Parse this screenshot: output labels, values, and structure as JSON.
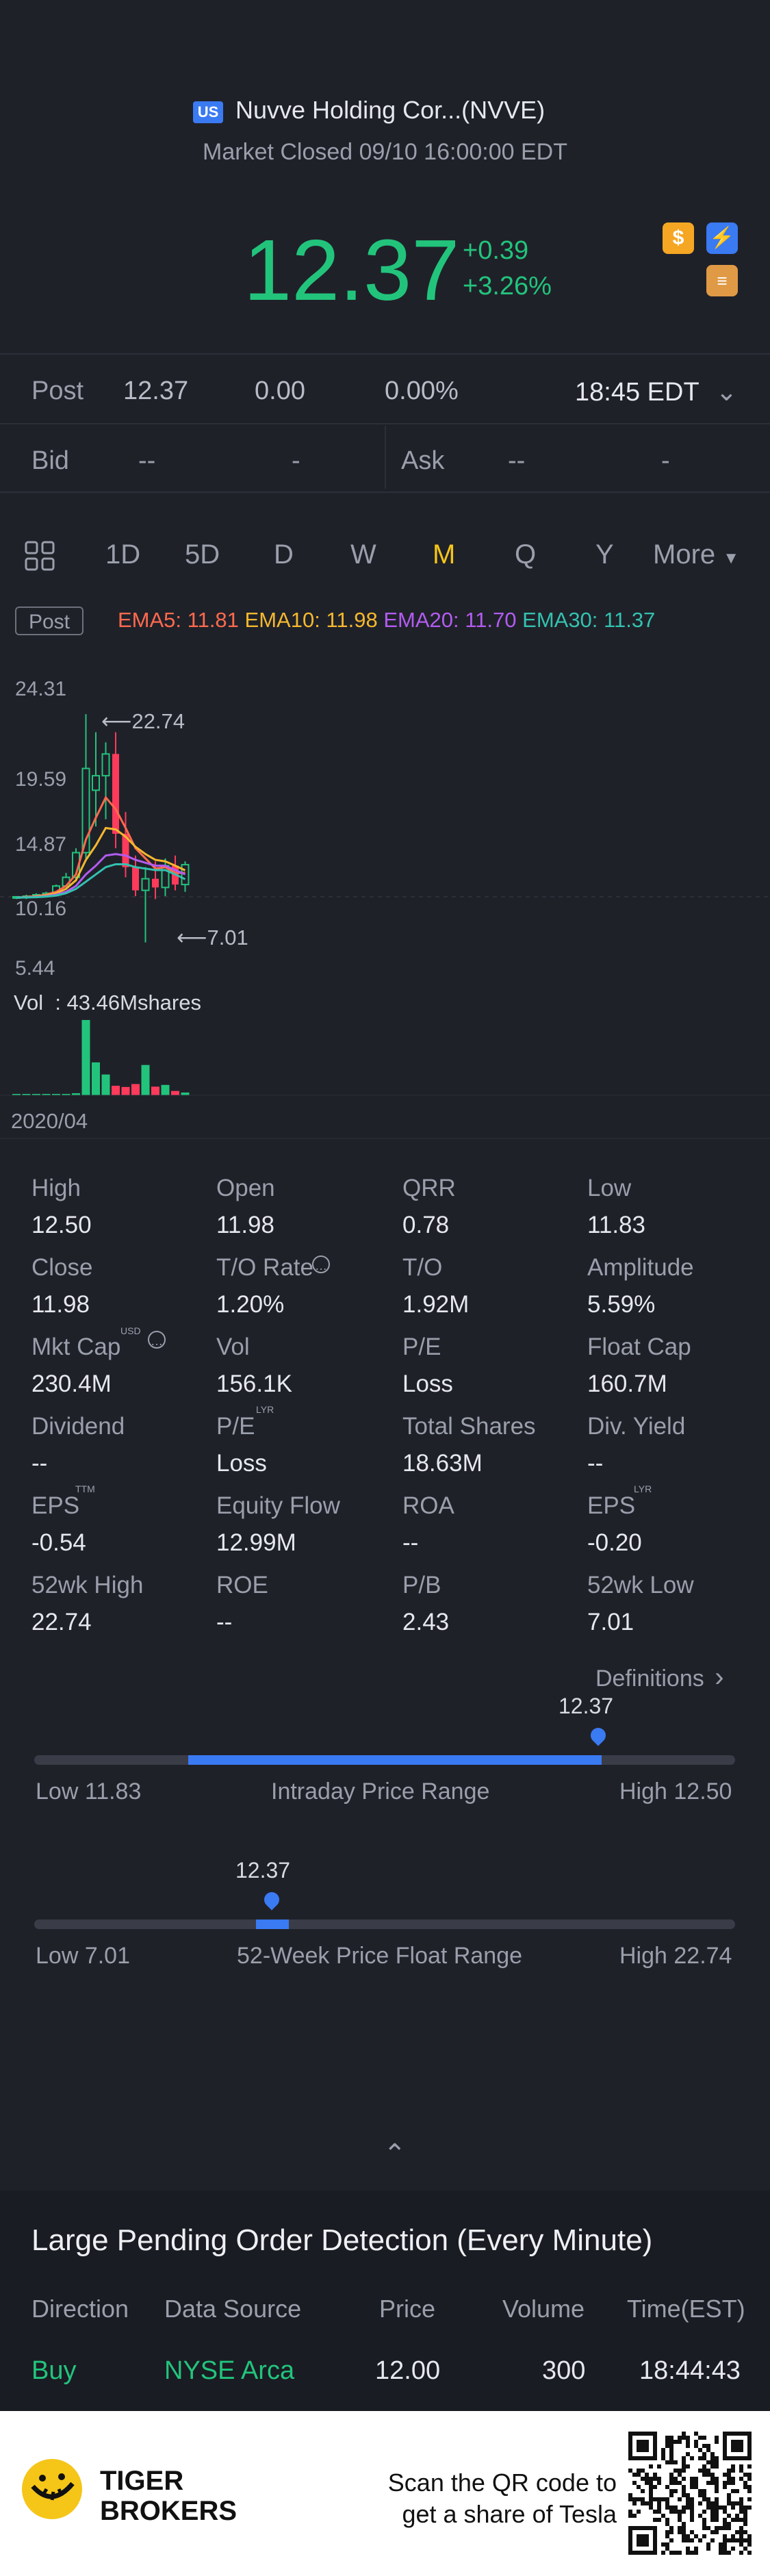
{
  "header": {
    "market_badge": "US",
    "name": "Nuvve Holding Cor...(NVVE)",
    "status": "Market Closed 09/10 16:00:00 EDT"
  },
  "quote": {
    "price": "12.37",
    "change": "+0.39",
    "change_pct": "+3.26%"
  },
  "post": {
    "label": "Post",
    "price": "12.37",
    "change": "0.00",
    "change_pct": "0.00%",
    "time": "18:45 EDT"
  },
  "bidask": {
    "bid_label": "Bid",
    "bid_price": "--",
    "bid_size": "-",
    "ask_label": "Ask",
    "ask_price": "--",
    "ask_size": "-"
  },
  "tabs": {
    "items": [
      "1D",
      "5D",
      "D",
      "W",
      "M",
      "Q",
      "Y"
    ],
    "active": "M",
    "more_label": "More"
  },
  "indicators": {
    "post_badge": "Post",
    "ema5": "EMA5: 11.81",
    "ema10": "EMA10: 11.98",
    "ema20": "EMA20: 11.70",
    "ema30": "EMA30: 11.37",
    "colors": {
      "ema5": "#ff6a4d",
      "ema10": "#f5b82e",
      "ema20": "#b25cf0",
      "ema30": "#33c2b0"
    }
  },
  "chart_data": {
    "type": "candlestick",
    "y_ticks": [
      "24.31",
      "19.59",
      "14.87",
      "10.16",
      "5.44"
    ],
    "ylim": [
      5.44,
      24.31
    ],
    "high_annotation": "22.74",
    "low_annotation": "7.01",
    "volume_label": "Vol  : 43.46Mshares",
    "x_start_label": "2020/04",
    "candles": [
      {
        "o": 10.1,
        "h": 10.2,
        "l": 10.0,
        "c": 10.16
      },
      {
        "o": 10.16,
        "h": 10.3,
        "l": 10.0,
        "c": 10.2
      },
      {
        "o": 10.2,
        "h": 10.4,
        "l": 10.1,
        "c": 10.3
      },
      {
        "o": 10.3,
        "h": 10.5,
        "l": 10.2,
        "c": 10.4
      },
      {
        "o": 10.4,
        "h": 11.0,
        "l": 10.3,
        "c": 10.9
      },
      {
        "o": 10.9,
        "h": 11.8,
        "l": 10.8,
        "c": 11.5
      },
      {
        "o": 11.5,
        "h": 13.5,
        "l": 11.2,
        "c": 13.2
      },
      {
        "o": 13.2,
        "h": 22.74,
        "l": 12.8,
        "c": 19.0
      },
      {
        "o": 17.5,
        "h": 21.5,
        "l": 15.0,
        "c": 18.5
      },
      {
        "o": 18.5,
        "h": 20.8,
        "l": 15.5,
        "c": 20.0
      },
      {
        "o": 20.0,
        "h": 21.5,
        "l": 13.5,
        "c": 14.5
      },
      {
        "o": 14.5,
        "h": 16.0,
        "l": 11.5,
        "c": 12.2
      },
      {
        "o": 12.2,
        "h": 13.0,
        "l": 10.2,
        "c": 10.6
      },
      {
        "o": 10.6,
        "h": 12.2,
        "l": 7.01,
        "c": 11.4
      },
      {
        "o": 11.4,
        "h": 12.6,
        "l": 10.0,
        "c": 10.8
      },
      {
        "o": 10.8,
        "h": 12.8,
        "l": 10.2,
        "c": 12.3
      },
      {
        "o": 12.3,
        "h": 13.0,
        "l": 10.6,
        "c": 11.0
      },
      {
        "o": 11.0,
        "h": 12.6,
        "l": 10.5,
        "c": 12.37
      }
    ],
    "ema_series": [
      {
        "name": "EMA5",
        "color": "#ff6a4d",
        "values": [
          10.1,
          10.15,
          10.2,
          10.3,
          10.5,
          10.9,
          11.7,
          14.1,
          15.6,
          17.0,
          16.2,
          14.9,
          13.5,
          12.8,
          12.1,
          12.2,
          11.8,
          11.81
        ]
      },
      {
        "name": "EMA10",
        "color": "#f5b82e",
        "values": [
          10.1,
          10.13,
          10.18,
          10.25,
          10.4,
          10.7,
          11.3,
          12.7,
          13.7,
          14.9,
          14.8,
          14.3,
          13.6,
          13.1,
          12.7,
          12.6,
          12.3,
          11.98
        ]
      },
      {
        "name": "EMA20",
        "color": "#b25cf0",
        "values": [
          10.1,
          10.12,
          10.15,
          10.2,
          10.3,
          10.5,
          10.9,
          11.7,
          12.3,
          13.0,
          13.1,
          13.0,
          12.7,
          12.5,
          12.3,
          12.3,
          12.0,
          11.7
        ]
      },
      {
        "name": "EMA30",
        "color": "#33c2b0",
        "values": [
          10.1,
          10.11,
          10.13,
          10.17,
          10.24,
          10.4,
          10.7,
          11.2,
          11.7,
          12.2,
          12.4,
          12.4,
          12.2,
          12.1,
          12.0,
          12.0,
          11.7,
          11.37
        ]
      }
    ],
    "volumes": [
      0.5,
      0.4,
      0.3,
      0.3,
      0.4,
      0.6,
      1.2,
      43.46,
      19.0,
      12.0,
      5.5,
      4.8,
      6.5,
      17.5,
      5.0,
      6.0,
      2.5,
      1.6
    ]
  },
  "stats": {
    "rows": [
      [
        {
          "label": "High",
          "value": "12.50"
        },
        {
          "label": "Open",
          "value": "11.98"
        },
        {
          "label": "QRR",
          "value": "0.78"
        },
        {
          "label": "Low",
          "value": "11.83"
        }
      ],
      [
        {
          "label": "Close",
          "value": "11.98"
        },
        {
          "label": "T/O Rate",
          "value": "1.20%"
        },
        {
          "label": "T/O",
          "value": "1.92M"
        },
        {
          "label": "Amplitude",
          "value": "5.59%"
        }
      ],
      [
        {
          "label": "Mkt Cap",
          "value": "230.4M"
        },
        {
          "label": "Vol",
          "value": "156.1K"
        },
        {
          "label": "P/E",
          "value": "Loss"
        },
        {
          "label": "Float Cap",
          "value": "160.7M"
        }
      ],
      [
        {
          "label": "Dividend",
          "value": "--"
        },
        {
          "label": "P/E",
          "value": "Loss"
        },
        {
          "label": "Total Shares",
          "value": "18.63M"
        },
        {
          "label": "Div. Yield",
          "value": "--"
        }
      ],
      [
        {
          "label": "EPS",
          "value": "-0.54"
        },
        {
          "label": "Equity Flow",
          "value": "12.99M"
        },
        {
          "label": "ROA",
          "value": "--"
        },
        {
          "label": "EPS",
          "value": "-0.20"
        }
      ],
      [
        {
          "label": "52wk High",
          "value": "22.74"
        },
        {
          "label": "ROE",
          "value": "--"
        },
        {
          "label": "P/B",
          "value": "2.43"
        },
        {
          "label": "52wk Low",
          "value": "7.01"
        }
      ]
    ],
    "sup_usd": "USD",
    "sup_lyr": "LYR",
    "sup_ttm": "TTM"
  },
  "definitions_label": "Definitions",
  "intraday": {
    "current": "12.37",
    "low_label": "Low 11.83",
    "title": "Intraday Price Range",
    "high_label": "High 12.50",
    "fill_start_fraction": 0.22,
    "fill_end_fraction": 0.81
  },
  "week52": {
    "current": "12.37",
    "low_label": "Low 7.01",
    "title": "52-Week Price Float Range",
    "high_label": "High 22.74",
    "position_fraction": 0.34
  },
  "pending": {
    "title": "Large Pending Order Detection (Every Minute)",
    "headers": [
      "Direction",
      "Data Source",
      "Price",
      "Volume",
      "Time(EST)"
    ],
    "row": [
      "Buy",
      "NYSE Arca",
      "12.00",
      "300",
      "18:44:43"
    ]
  },
  "footer": {
    "brand_line1": "TIGER",
    "brand_line2": "BROKERS",
    "promo_line1": "Scan the QR code to",
    "promo_line2": "get a share of Tesla"
  }
}
